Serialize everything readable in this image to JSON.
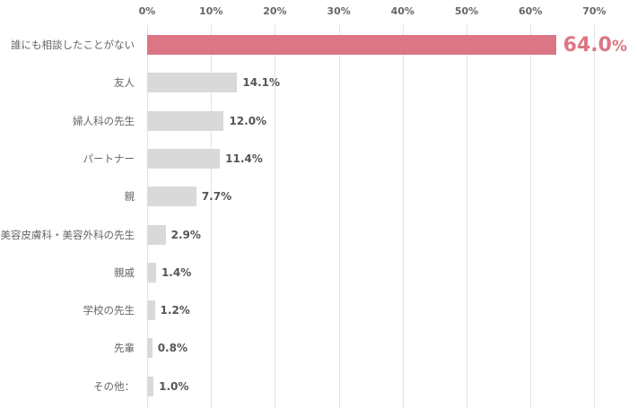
{
  "chart_data": {
    "type": "bar",
    "orientation": "horizontal",
    "title": "",
    "xlabel": "",
    "ylabel": "",
    "xlim": [
      0,
      70
    ],
    "x_ticks": [
      "0%",
      "10%",
      "20%",
      "30%",
      "40%",
      "50%",
      "60%",
      "70%"
    ],
    "grid": true,
    "axis_position": "top",
    "categories": [
      "誰にも相談したことがない",
      "友人",
      "婦人科の先生",
      "パートナー",
      "親",
      "美容皮膚科・美容外科の先生",
      "親戚",
      "学校の先生",
      "先輩",
      "その他："
    ],
    "values": [
      64.0,
      14.1,
      12.0,
      11.4,
      7.7,
      2.9,
      1.4,
      1.2,
      0.8,
      1.0
    ],
    "value_labels": [
      "64.0",
      "14.1%",
      "12.0%",
      "11.4%",
      "7.7%",
      "2.9%",
      "1.4%",
      "1.2%",
      "0.8%",
      "1.0%"
    ],
    "highlight_index": 0,
    "colors": {
      "highlight": "#dc7684",
      "default": "#d9d9d9",
      "grid": "#e2e2e2",
      "text": "#666666"
    }
  },
  "highlight_suffix": "%"
}
